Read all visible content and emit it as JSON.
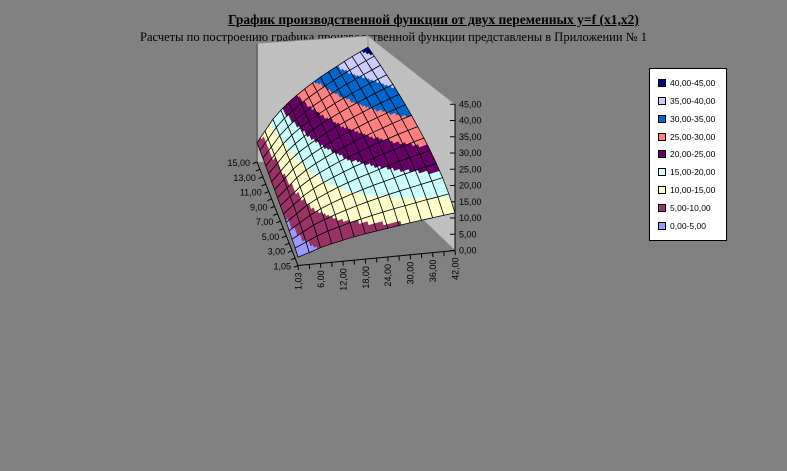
{
  "title": {
    "text": "График производственной функции от двух переменных y=f (x1,x2)"
  },
  "subtitle": {
    "text": "Расчеты по построению графика производственной функции представлены в Приложении № 1"
  },
  "colors": {
    "canvas_background": "#818181",
    "wall": "#BFBFBF",
    "wall_edge": "#686868",
    "mesh_line": "#000000",
    "legend_background": "#FFFFFF",
    "legend_border": "#000000",
    "text": "#000000"
  },
  "chart_data": {
    "type": "surface",
    "projection": "3d",
    "title": "",
    "xlabel": "",
    "ylabel": "",
    "zlabel": "",
    "x": {
      "values": [
        1.03,
        3,
        6,
        9,
        12,
        15,
        18,
        21,
        24,
        27,
        30,
        33,
        36,
        39,
        42
      ],
      "tick_labels": [
        "1,03",
        "6,00",
        "12,00",
        "18,00",
        "24,00",
        "30,00",
        "36,00",
        "42,00"
      ]
    },
    "y": {
      "values": [
        1.05,
        2,
        3,
        4,
        5,
        6,
        7,
        8,
        9,
        10,
        11,
        12,
        13,
        14,
        15
      ],
      "tick_labels": [
        "1,05",
        "3,00",
        "5,00",
        "7,00",
        "9,00",
        "11,00",
        "13,00",
        "15,00"
      ]
    },
    "z": {
      "range": [
        0,
        45
      ],
      "tick_step": 5,
      "tick_labels": [
        "0,00",
        "5,00",
        "10,00",
        "15,00",
        "20,00",
        "25,00",
        "30,00",
        "35,00",
        "40,00",
        "45,00"
      ]
    },
    "matrix": [
      [
        2.7,
        3.8,
        5.0,
        5.9,
        6.7,
        7.4,
        8.0,
        8.5,
        9.0,
        9.5,
        10.0,
        10.4,
        10.8,
        11.2,
        11.6
      ],
      [
        3.3,
        4.9,
        6.5,
        7.8,
        8.8,
        9.8,
        10.6,
        11.4,
        12.1,
        12.8,
        13.4,
        14.0,
        14.6,
        15.1,
        15.7
      ],
      [
        3.8,
        5.8,
        7.8,
        9.3,
        10.6,
        11.7,
        12.8,
        13.7,
        14.6,
        15.4,
        16.2,
        16.9,
        17.6,
        18.3,
        19.0
      ],
      [
        4.2,
        6.5,
        8.8,
        10.6,
        12.1,
        13.4,
        14.6,
        15.7,
        16.7,
        17.6,
        18.5,
        19.4,
        20.2,
        21.0,
        21.7
      ],
      [
        4.6,
        7.2,
        9.8,
        11.7,
        13.4,
        14.9,
        16.2,
        17.4,
        18.5,
        19.6,
        20.6,
        21.6,
        22.5,
        23.3,
        24.2
      ],
      [
        5.0,
        7.8,
        10.6,
        12.8,
        14.6,
        16.2,
        17.6,
        19.0,
        20.2,
        21.4,
        22.5,
        23.5,
        24.5,
        25.5,
        26.4
      ],
      [
        5.3,
        8.3,
        11.4,
        13.7,
        15.7,
        17.4,
        19.0,
        20.4,
        21.7,
        23.0,
        24.2,
        25.3,
        26.4,
        27.4,
        28.4
      ],
      [
        5.6,
        8.8,
        12.1,
        14.6,
        16.7,
        18.5,
        20.2,
        21.7,
        23.2,
        24.5,
        25.8,
        27.0,
        28.2,
        29.3,
        30.3
      ],
      [
        5.9,
        9.3,
        12.8,
        15.4,
        17.6,
        19.6,
        21.4,
        23.0,
        24.5,
        25.9,
        27.3,
        28.6,
        29.8,
        31.0,
        32.1
      ],
      [
        6.1,
        9.8,
        13.4,
        16.2,
        18.5,
        20.6,
        22.5,
        24.2,
        25.8,
        27.3,
        28.7,
        30.1,
        31.4,
        32.6,
        33.8
      ],
      [
        6.4,
        10.2,
        14.0,
        16.9,
        19.4,
        21.6,
        23.5,
        25.3,
        27.0,
        28.6,
        30.1,
        31.5,
        32.8,
        34.1,
        35.4
      ],
      [
        6.6,
        10.6,
        14.6,
        17.6,
        20.2,
        22.5,
        24.5,
        26.4,
        28.2,
        29.8,
        31.4,
        32.8,
        34.3,
        35.6,
        36.9
      ],
      [
        6.9,
        11.0,
        15.1,
        18.3,
        21.0,
        23.3,
        25.5,
        27.4,
        29.3,
        31.0,
        32.6,
        34.1,
        35.6,
        37.0,
        38.4
      ],
      [
        7.1,
        11.4,
        15.7,
        19.0,
        21.7,
        24.2,
        26.4,
        28.4,
        30.3,
        32.1,
        33.8,
        35.4,
        36.9,
        38.4,
        39.8
      ],
      [
        7.3,
        11.7,
        16.2,
        19.6,
        22.5,
        25.0,
        27.3,
        29.4,
        31.4,
        33.2,
        34.9,
        36.6,
        38.2,
        39.7,
        41.2
      ]
    ],
    "bands": [
      {
        "label": "0,00-5,00",
        "min": 0,
        "max": 5,
        "color": "#9999FF"
      },
      {
        "label": "5,00-10,00",
        "min": 5,
        "max": 10,
        "color": "#993366"
      },
      {
        "label": "10,00-15,00",
        "min": 10,
        "max": 15,
        "color": "#FFFFCC"
      },
      {
        "label": "15,00-20,00",
        "min": 15,
        "max": 20,
        "color": "#CCFFFF"
      },
      {
        "label": "20,00-25,00",
        "min": 20,
        "max": 25,
        "color": "#660066"
      },
      {
        "label": "25,00-30,00",
        "min": 25,
        "max": 30,
        "color": "#FF8080"
      },
      {
        "label": "30,00-35,00",
        "min": 30,
        "max": 35,
        "color": "#0066CC"
      },
      {
        "label": "35,00-40,00",
        "min": 35,
        "max": 40,
        "color": "#CCCCFF"
      },
      {
        "label": "40,00-45,00",
        "min": 40,
        "max": 45,
        "color": "#000080"
      }
    ],
    "legend_position": "right",
    "grid": "mesh-on"
  }
}
